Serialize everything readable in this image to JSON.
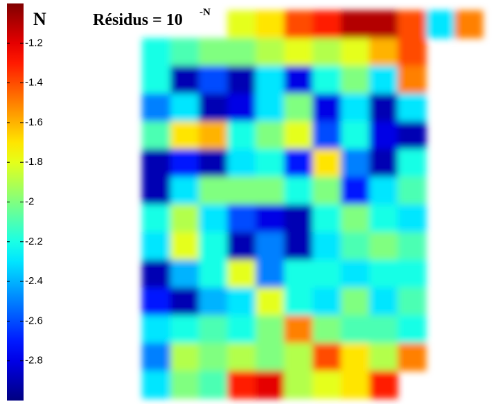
{
  "chart_data": {
    "type": "heatmap",
    "title": "Résidus = 10",
    "title_superscript": "-N",
    "colorbar_label": "N",
    "colormap": "jet",
    "clim": [
      -3,
      -1
    ],
    "cticks": [
      -1.2,
      -1.4,
      -1.6,
      -1.8,
      -2,
      -2.2,
      -2.4,
      -2.6,
      -2.8
    ],
    "z": [
      [
        null,
        null,
        null,
        -1.8,
        -1.7,
        -1.4,
        -1.3,
        -1.1,
        -1.1,
        -1.4,
        -2.3,
        -1.5
      ],
      [
        -2.2,
        -2.1,
        -2.0,
        -2.0,
        -1.9,
        -1.8,
        -1.9,
        -1.8,
        -1.6,
        -1.4,
        null,
        null
      ],
      [
        -2.2,
        -2.9,
        -2.6,
        -2.9,
        -2.3,
        -2.8,
        -2.2,
        -2.0,
        -2.3,
        -1.5,
        null,
        null
      ],
      [
        -2.5,
        -2.3,
        -2.9,
        -2.8,
        -2.3,
        -2.0,
        -2.8,
        -2.3,
        -2.9,
        -2.3,
        null,
        null
      ],
      [
        -2.1,
        -1.7,
        -1.6,
        -2.2,
        -2.0,
        -1.8,
        -2.6,
        -2.2,
        -2.8,
        -2.9,
        null,
        null
      ],
      [
        -2.9,
        -2.7,
        -2.9,
        -2.3,
        -2.2,
        -2.7,
        -1.7,
        -2.5,
        -2.9,
        -2.2,
        null,
        null
      ],
      [
        -2.9,
        -2.3,
        -2.0,
        -2.0,
        -2.0,
        -2.2,
        -2.0,
        -2.7,
        -2.3,
        -2.1,
        null,
        null
      ],
      [
        -2.2,
        -1.9,
        -2.3,
        -2.6,
        -2.8,
        -2.9,
        -2.2,
        -2.0,
        -2.2,
        -2.3,
        null,
        null
      ],
      [
        -2.3,
        -1.8,
        -2.2,
        -2.9,
        -2.5,
        -2.9,
        -2.3,
        -2.1,
        -2.0,
        -2.1,
        null,
        null
      ],
      [
        -2.9,
        -2.4,
        -2.2,
        -1.8,
        -2.5,
        -2.2,
        -2.2,
        -2.3,
        -2.2,
        -2.2,
        null,
        null
      ],
      [
        -2.7,
        -2.9,
        -2.4,
        -2.3,
        -1.8,
        -2.2,
        -2.3,
        -2.0,
        -2.3,
        -2.1,
        null,
        null
      ],
      [
        -2.3,
        -2.2,
        -2.1,
        -2.2,
        -2.0,
        -1.5,
        -2.0,
        -2.1,
        -2.1,
        -2.2,
        null,
        null
      ],
      [
        -2.5,
        -1.9,
        -2.0,
        -1.9,
        -2.0,
        -1.9,
        -1.4,
        -1.7,
        -1.9,
        -1.5,
        null,
        null
      ],
      [
        -2.3,
        -2.0,
        -2.1,
        -1.3,
        -1.2,
        -1.9,
        -1.8,
        -1.7,
        -1.3,
        null,
        null,
        null
      ]
    ]
  }
}
